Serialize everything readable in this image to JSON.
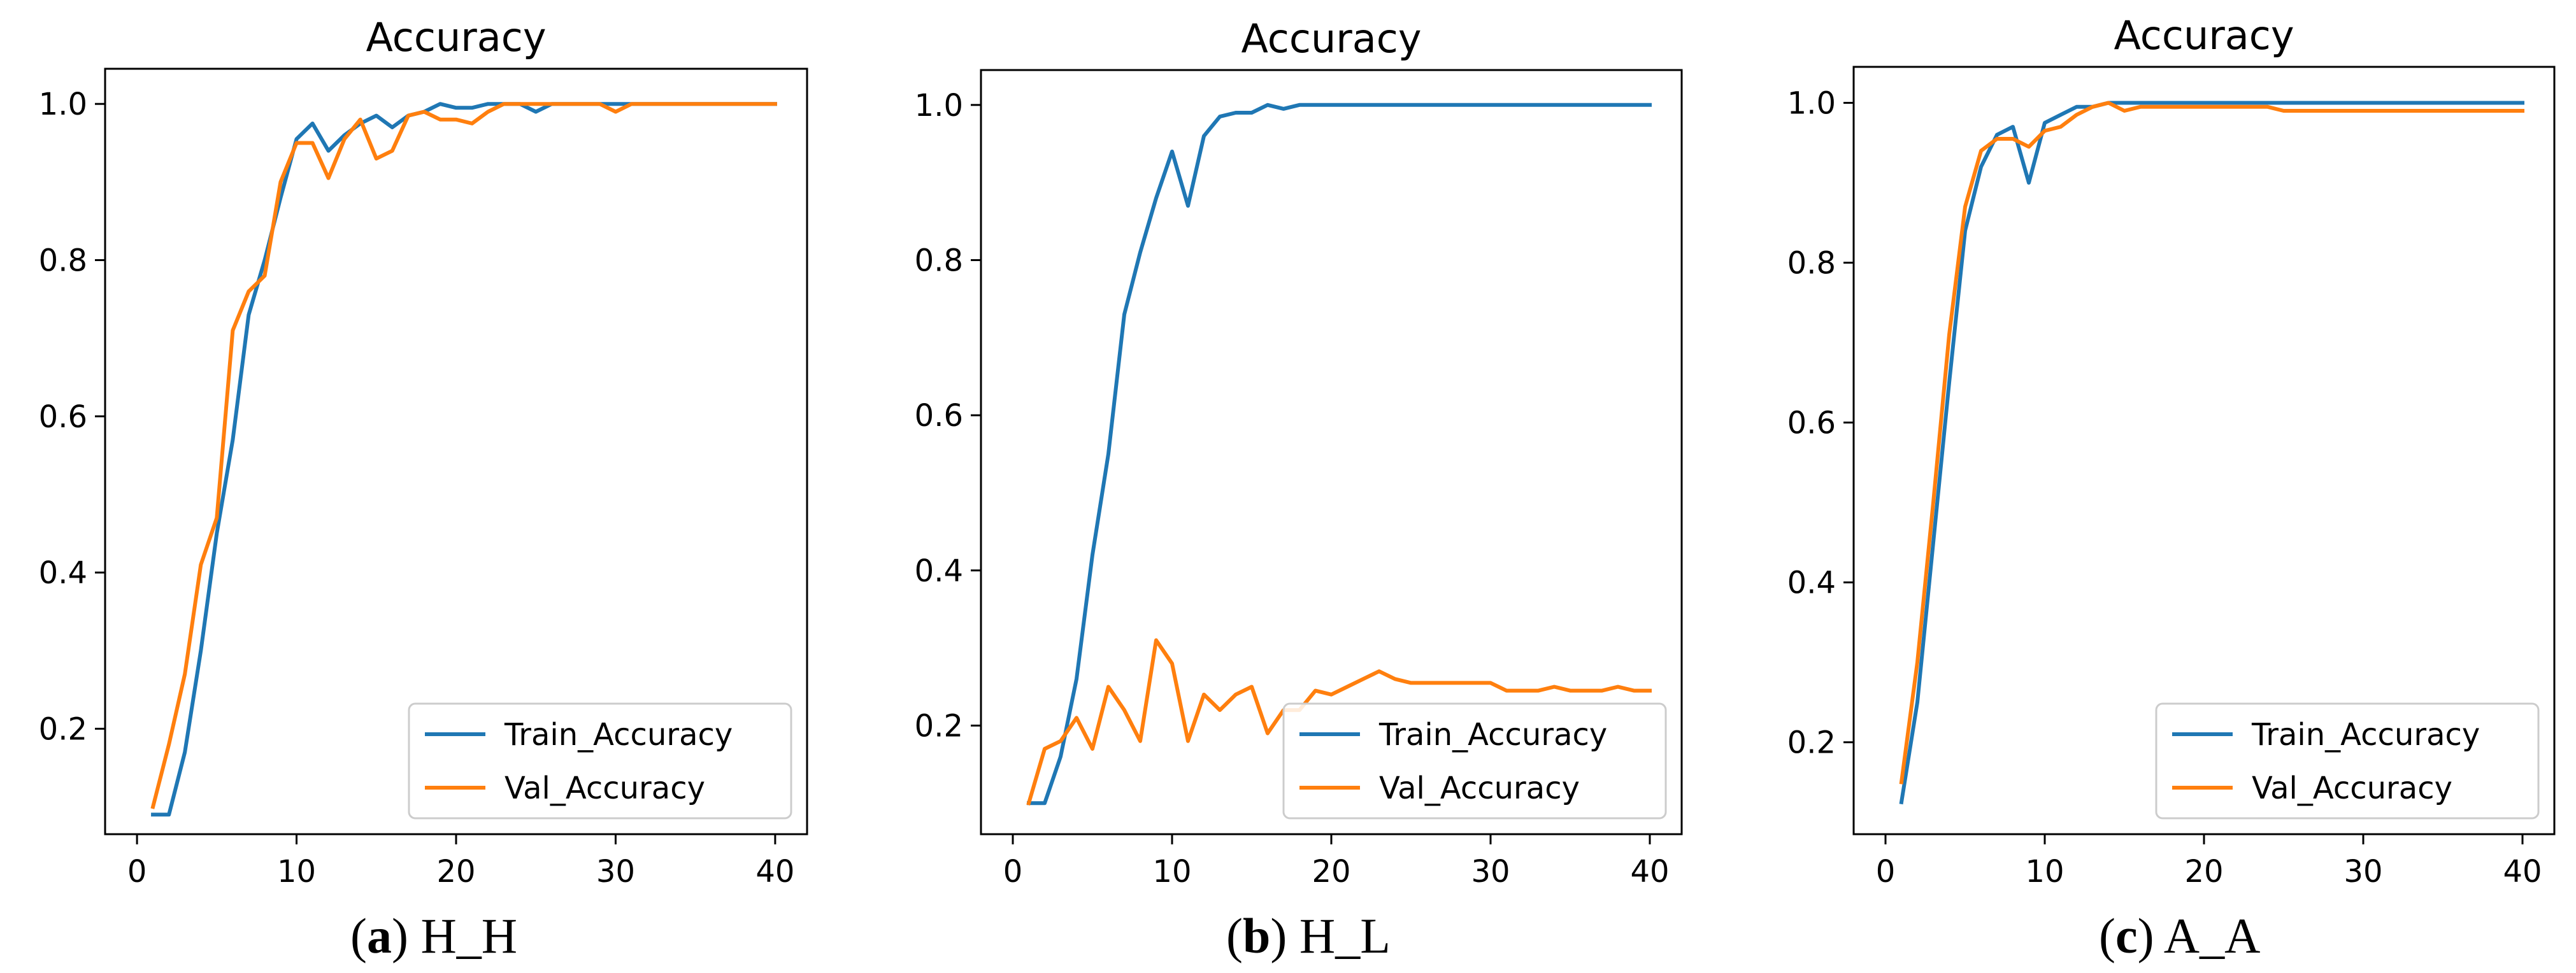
{
  "colors": {
    "train": "#1f77b4",
    "val": "#ff7f0e",
    "axis": "#000000",
    "legend_border": "#cccccc"
  },
  "chart_data": [
    {
      "type": "line",
      "title": "Accuracy",
      "caption": {
        "letter": "a",
        "text": " H_H"
      },
      "xlim": [
        -2,
        42
      ],
      "ylim": [
        0.065,
        1.045
      ],
      "xticks": [
        0,
        10,
        20,
        30,
        40
      ],
      "yticks": [
        0.2,
        0.4,
        0.6,
        0.8,
        1.0
      ],
      "xtick_labels": [
        "0",
        "10",
        "20",
        "30",
        "40"
      ],
      "ytick_labels": [
        "0.2",
        "0.4",
        "0.6",
        "0.8",
        "1.0"
      ],
      "grid": false,
      "legend": {
        "position": "lower-right",
        "entries": [
          "Train_Accuracy",
          "Val_Accuracy"
        ]
      },
      "x": [
        1,
        2,
        3,
        4,
        5,
        6,
        7,
        8,
        9,
        10,
        11,
        12,
        13,
        14,
        15,
        16,
        17,
        18,
        19,
        20,
        21,
        22,
        23,
        24,
        25,
        26,
        27,
        28,
        29,
        30,
        31,
        32,
        33,
        34,
        35,
        36,
        37,
        38,
        39,
        40
      ],
      "series": [
        {
          "name": "Train_Accuracy",
          "values": [
            0.09,
            0.09,
            0.17,
            0.3,
            0.45,
            0.57,
            0.73,
            0.8,
            0.88,
            0.955,
            0.975,
            0.94,
            0.96,
            0.975,
            0.985,
            0.97,
            0.985,
            0.99,
            1.0,
            0.995,
            0.995,
            1.0,
            1.0,
            1.0,
            0.99,
            1.0,
            1.0,
            1.0,
            1.0,
            1.0,
            1.0,
            1.0,
            1.0,
            1.0,
            1.0,
            1.0,
            1.0,
            1.0,
            1.0,
            1.0
          ]
        },
        {
          "name": "Val_Accuracy",
          "values": [
            0.1,
            0.18,
            0.27,
            0.41,
            0.47,
            0.71,
            0.76,
            0.78,
            0.9,
            0.95,
            0.95,
            0.905,
            0.955,
            0.98,
            0.93,
            0.94,
            0.985,
            0.99,
            0.98,
            0.98,
            0.975,
            0.99,
            1.0,
            1.0,
            1.0,
            1.0,
            1.0,
            1.0,
            1.0,
            0.99,
            1.0,
            1.0,
            1.0,
            1.0,
            1.0,
            1.0,
            1.0,
            1.0,
            1.0,
            1.0
          ]
        }
      ]
    },
    {
      "type": "line",
      "title": "Accuracy",
      "caption": {
        "letter": "b",
        "text": " H_L"
      },
      "xlim": [
        -2,
        42
      ],
      "ylim": [
        0.06,
        1.045
      ],
      "xticks": [
        0,
        10,
        20,
        30,
        40
      ],
      "yticks": [
        0.2,
        0.4,
        0.6,
        0.8,
        1.0
      ],
      "xtick_labels": [
        "0",
        "10",
        "20",
        "30",
        "40"
      ],
      "ytick_labels": [
        "0.2",
        "0.4",
        "0.6",
        "0.8",
        "1.0"
      ],
      "grid": false,
      "legend": {
        "position": "lower-right",
        "entries": [
          "Train_Accuracy",
          "Val_Accuracy"
        ]
      },
      "x": [
        1,
        2,
        3,
        4,
        5,
        6,
        7,
        8,
        9,
        10,
        11,
        12,
        13,
        14,
        15,
        16,
        17,
        18,
        19,
        20,
        21,
        22,
        23,
        24,
        25,
        26,
        27,
        28,
        29,
        30,
        31,
        32,
        33,
        34,
        35,
        36,
        37,
        38,
        39,
        40
      ],
      "series": [
        {
          "name": "Train_Accuracy",
          "values": [
            0.1,
            0.1,
            0.16,
            0.26,
            0.42,
            0.55,
            0.73,
            0.81,
            0.88,
            0.94,
            0.87,
            0.96,
            0.985,
            0.99,
            0.99,
            1.0,
            0.995,
            1.0,
            1.0,
            1.0,
            1.0,
            1.0,
            1.0,
            1.0,
            1.0,
            1.0,
            1.0,
            1.0,
            1.0,
            1.0,
            1.0,
            1.0,
            1.0,
            1.0,
            1.0,
            1.0,
            1.0,
            1.0,
            1.0,
            1.0
          ]
        },
        {
          "name": "Val_Accuracy",
          "values": [
            0.1,
            0.17,
            0.18,
            0.21,
            0.17,
            0.25,
            0.22,
            0.18,
            0.31,
            0.28,
            0.18,
            0.24,
            0.22,
            0.24,
            0.25,
            0.19,
            0.22,
            0.22,
            0.245,
            0.24,
            0.25,
            0.26,
            0.27,
            0.26,
            0.255,
            0.255,
            0.255,
            0.255,
            0.255,
            0.255,
            0.245,
            0.245,
            0.245,
            0.25,
            0.245,
            0.245,
            0.245,
            0.25,
            0.245,
            0.245
          ]
        }
      ]
    },
    {
      "type": "line",
      "title": "Accuracy",
      "caption": {
        "letter": "c",
        "text": " A_A"
      },
      "xlim": [
        -2,
        42
      ],
      "ylim": [
        0.085,
        1.045
      ],
      "xticks": [
        0,
        10,
        20,
        30,
        40
      ],
      "yticks": [
        0.2,
        0.4,
        0.6,
        0.8,
        1.0
      ],
      "xtick_labels": [
        "0",
        "10",
        "20",
        "30",
        "40"
      ],
      "ytick_labels": [
        "0.2",
        "0.4",
        "0.6",
        "0.8",
        "1.0"
      ],
      "grid": false,
      "legend": {
        "position": "lower-right",
        "entries": [
          "Train_Accuracy",
          "Val_Accuracy"
        ]
      },
      "x": [
        1,
        2,
        3,
        4,
        5,
        6,
        7,
        8,
        9,
        10,
        11,
        12,
        13,
        14,
        15,
        16,
        17,
        18,
        19,
        20,
        21,
        22,
        23,
        24,
        25,
        26,
        27,
        28,
        29,
        30,
        31,
        32,
        33,
        34,
        35,
        36,
        37,
        38,
        39,
        40
      ],
      "series": [
        {
          "name": "Train_Accuracy",
          "values": [
            0.125,
            0.25,
            0.45,
            0.65,
            0.84,
            0.92,
            0.96,
            0.97,
            0.9,
            0.975,
            0.985,
            0.995,
            0.995,
            1.0,
            1.0,
            1.0,
            1.0,
            1.0,
            1.0,
            1.0,
            1.0,
            1.0,
            1.0,
            1.0,
            1.0,
            1.0,
            1.0,
            1.0,
            1.0,
            1.0,
            1.0,
            1.0,
            1.0,
            1.0,
            1.0,
            1.0,
            1.0,
            1.0,
            1.0,
            1.0
          ]
        },
        {
          "name": "Val_Accuracy",
          "values": [
            0.15,
            0.3,
            0.5,
            0.71,
            0.87,
            0.94,
            0.955,
            0.955,
            0.945,
            0.965,
            0.97,
            0.985,
            0.995,
            1.0,
            0.99,
            0.995,
            0.995,
            0.995,
            0.995,
            0.995,
            0.995,
            0.995,
            0.995,
            0.995,
            0.99,
            0.99,
            0.99,
            0.99,
            0.99,
            0.99,
            0.99,
            0.99,
            0.99,
            0.99,
            0.99,
            0.99,
            0.99,
            0.99,
            0.99,
            0.99
          ]
        }
      ]
    }
  ]
}
